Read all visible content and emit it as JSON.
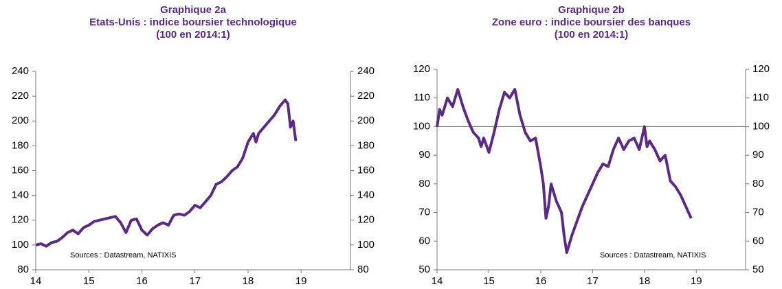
{
  "chart_data": [
    {
      "type": "line",
      "title": [
        "Graphique 2a",
        "Etats-Unis : indice boursier technologique",
        "(100 en 2014:1)"
      ],
      "annotation": "Sources : Datastream,  NATIXIS",
      "xlim": [
        14,
        19.93
      ],
      "xticks": [
        14,
        15,
        16,
        17,
        18,
        19
      ],
      "ylim": [
        80,
        240
      ],
      "yticks": [
        80,
        100,
        120,
        140,
        160,
        180,
        200,
        220,
        240
      ],
      "y2lim": [
        80,
        240
      ],
      "y2ticks": [
        80,
        100,
        120,
        140,
        160,
        180,
        200,
        220,
        240
      ],
      "series": [
        {
          "color": "#5b2a86",
          "x": [
            14.0,
            14.1,
            14.2,
            14.3,
            14.4,
            14.5,
            14.6,
            14.7,
            14.8,
            14.9,
            15.0,
            15.1,
            15.2,
            15.3,
            15.4,
            15.5,
            15.6,
            15.7,
            15.8,
            15.9,
            16.0,
            16.1,
            16.2,
            16.3,
            16.4,
            16.5,
            16.6,
            16.7,
            16.8,
            16.9,
            17.0,
            17.1,
            17.2,
            17.3,
            17.4,
            17.5,
            17.6,
            17.7,
            17.8,
            17.9,
            18.0,
            18.1,
            18.15,
            18.2,
            18.3,
            18.4,
            18.5,
            18.6,
            18.7,
            18.75,
            18.8,
            18.85,
            18.9
          ],
          "values": [
            100,
            101,
            99,
            102,
            103,
            106,
            110,
            112,
            109,
            114,
            116,
            119,
            120,
            121,
            122,
            123,
            118,
            110,
            120,
            121,
            112,
            108,
            113,
            116,
            118,
            116,
            124,
            125,
            124,
            127,
            132,
            130,
            135,
            140,
            149,
            151,
            155,
            160,
            163,
            170,
            183,
            190,
            183,
            190,
            195,
            200,
            205,
            212,
            217,
            214,
            195,
            200,
            184
          ]
        }
      ]
    },
    {
      "type": "line",
      "title": [
        "Graphique 2b",
        "Zone euro : indice boursier des banques",
        "(100 en 2014:1)"
      ],
      "annotation": "Sources : Datastream,  NATIXIS",
      "xlim": [
        14,
        19.95
      ],
      "xticks": [
        14,
        15,
        16,
        17,
        18,
        19
      ],
      "ylim": [
        50,
        120
      ],
      "yticks": [
        50,
        60,
        70,
        80,
        90,
        100,
        110,
        120
      ],
      "y2lim": [
        50,
        120
      ],
      "y2ticks": [
        50,
        60,
        70,
        80,
        90,
        100,
        110,
        120
      ],
      "hline": 100,
      "series": [
        {
          "color": "#5b2a86",
          "x": [
            14.0,
            14.05,
            14.1,
            14.2,
            14.3,
            14.4,
            14.5,
            14.6,
            14.7,
            14.8,
            14.85,
            14.9,
            15.0,
            15.1,
            15.2,
            15.3,
            15.4,
            15.5,
            15.6,
            15.7,
            15.8,
            15.9,
            16.0,
            16.05,
            16.1,
            16.15,
            16.2,
            16.3,
            16.4,
            16.45,
            16.5,
            16.6,
            16.7,
            16.8,
            16.9,
            17.0,
            17.1,
            17.2,
            17.3,
            17.4,
            17.5,
            17.6,
            17.7,
            17.8,
            17.9,
            18.0,
            18.05,
            18.1,
            18.2,
            18.3,
            18.4,
            18.5,
            18.6,
            18.7,
            18.8,
            18.85,
            18.9
          ],
          "values": [
            100,
            106,
            104,
            110,
            107,
            113,
            107,
            102,
            98,
            96,
            93,
            96,
            91,
            98,
            106,
            112,
            110,
            113,
            104,
            98,
            95,
            96,
            86,
            80,
            68,
            72,
            80,
            74,
            70,
            62,
            56,
            62,
            67,
            72,
            76,
            80,
            84,
            87,
            86,
            92,
            96,
            92,
            95,
            96,
            92,
            100,
            93,
            95,
            92,
            88,
            90,
            81,
            79,
            76,
            72,
            70,
            68
          ]
        }
      ]
    }
  ]
}
